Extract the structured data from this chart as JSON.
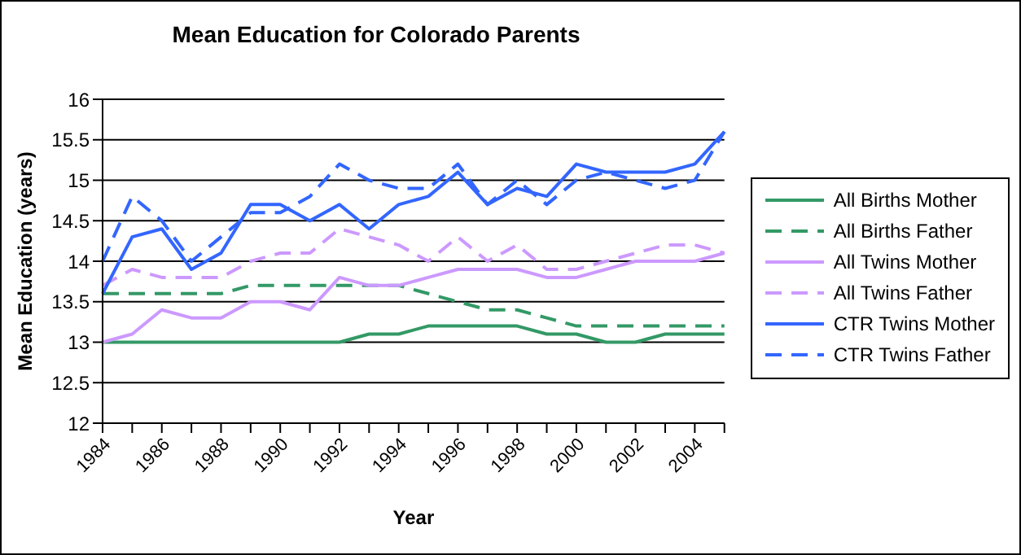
{
  "chart_data": {
    "type": "line",
    "title": "Mean Education for Colorado Parents",
    "xlabel": "Year",
    "ylabel": "Mean Education (years)",
    "categories": [
      "1984",
      null,
      "1986",
      null,
      "1988",
      null,
      "1990",
      null,
      "1992",
      null,
      "1994",
      null,
      "1996",
      null,
      "1998",
      null,
      "2000",
      null,
      "2002",
      null,
      "2004",
      null
    ],
    "ylim": [
      12,
      16
    ],
    "yticks": [
      12,
      12.5,
      13,
      13.5,
      14,
      14.5,
      15,
      15.5,
      16
    ],
    "grid": "y",
    "legend": "right",
    "marker": "none",
    "series": [
      {
        "name": "All Births Mother",
        "color": "#339966",
        "line_style": "solid",
        "values": [
          13,
          13,
          13,
          13,
          13,
          13,
          13,
          13,
          13,
          13.1,
          13.1,
          13.2,
          13.2,
          13.2,
          13.2,
          13.1,
          13.1,
          13.0,
          13.0,
          13.1,
          13.1,
          13.1
        ]
      },
      {
        "name": "All Births Father",
        "color": "#339966",
        "line_style": "dashed",
        "values": [
          13.6,
          13.6,
          13.6,
          13.6,
          13.6,
          13.7,
          13.7,
          13.7,
          13.7,
          13.7,
          13.7,
          13.6,
          13.5,
          13.4,
          13.4,
          13.3,
          13.2,
          13.2,
          13.2,
          13.2,
          13.2,
          13.2
        ]
      },
      {
        "name": "All Twins Mother",
        "color": "#cc99ff",
        "line_style": "solid",
        "values": [
          13.0,
          13.1,
          13.4,
          13.3,
          13.3,
          13.5,
          13.5,
          13.4,
          13.8,
          13.7,
          13.7,
          13.8,
          13.9,
          13.9,
          13.9,
          13.8,
          13.8,
          13.9,
          14.0,
          14.0,
          14.0,
          14.1
        ]
      },
      {
        "name": "All Twins Father",
        "color": "#cc99ff",
        "line_style": "dashed",
        "values": [
          13.7,
          13.9,
          13.8,
          13.8,
          13.8,
          14.0,
          14.1,
          14.1,
          14.4,
          14.3,
          14.2,
          14.0,
          14.3,
          14.0,
          14.2,
          13.9,
          13.9,
          14.0,
          14.1,
          14.2,
          14.2,
          14.1
        ]
      },
      {
        "name": "CTR Twins Mother",
        "color": "#3366ff",
        "line_style": "solid",
        "values": [
          13.6,
          14.3,
          14.4,
          13.9,
          14.1,
          14.7,
          14.7,
          14.5,
          14.7,
          14.4,
          14.7,
          14.8,
          15.1,
          14.7,
          14.9,
          14.8,
          15.2,
          15.1,
          15.1,
          15.1,
          15.2,
          15.6
        ]
      },
      {
        "name": "CTR Twins Father",
        "color": "#3366ff",
        "line_style": "dashed",
        "values": [
          14.0,
          14.8,
          14.5,
          14.0,
          14.3,
          14.6,
          14.6,
          14.8,
          15.2,
          15.0,
          14.9,
          14.9,
          15.2,
          14.7,
          15.0,
          14.7,
          15.0,
          15.1,
          15.0,
          14.9,
          15.0,
          15.6
        ]
      }
    ]
  }
}
